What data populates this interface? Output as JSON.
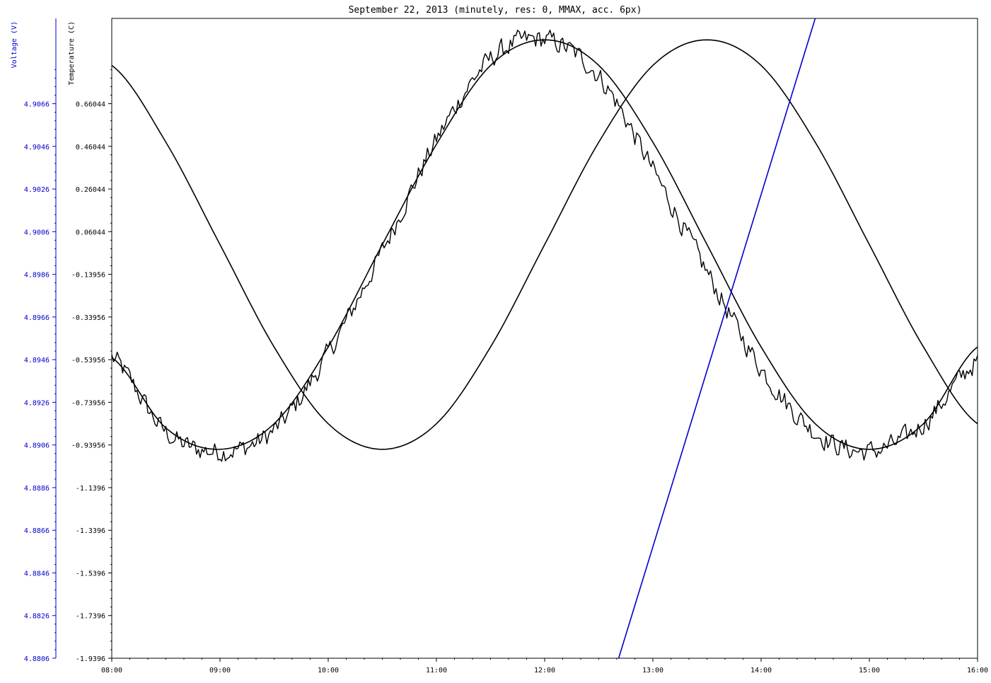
{
  "chart_data": {
    "type": "line",
    "title": "September 22, 2013 (minutely, res: 0, MMAX, acc. 6px)",
    "x_ticks": [
      "08:00",
      "09:00",
      "10:00",
      "11:00",
      "12:00",
      "13:00",
      "14:00",
      "15:00",
      "16:00"
    ],
    "xlim": [
      "08:00",
      "16:00"
    ],
    "axes": {
      "voltage": {
        "label": "Voltage (V)",
        "color": "#0000cc",
        "ylim": [
          4.8806,
          4.9106
        ],
        "ticks": [
          "4.8806",
          "4.8826",
          "4.8846",
          "4.8866",
          "4.8886",
          "4.8906",
          "4.8926",
          "4.8946",
          "4.8966",
          "4.8986",
          "4.9006",
          "4.9026",
          "4.9046",
          "4.9066"
        ]
      },
      "temperature": {
        "label": "Temperature (C)",
        "color": "#000000",
        "ylim": [
          -1.9396,
          1.0604
        ],
        "ticks": [
          "-1.9396",
          "-1.7396",
          "-1.5396",
          "-1.3396",
          "-1.1396",
          "-0.93956",
          "-0.73956",
          "-0.53956",
          "-0.33956",
          "-0.13956",
          "0.06044",
          "0.26044",
          "0.46044",
          "0.66044"
        ]
      }
    },
    "series": [
      {
        "axis": "temperature",
        "color": "#000000",
        "style": "noisy",
        "x": [
          "08:00",
          "08:30",
          "09:00",
          "09:30",
          "10:00",
          "10:30",
          "11:00",
          "11:30",
          "12:00",
          "12:30",
          "13:00",
          "13:30",
          "14:00",
          "14:30",
          "15:00",
          "15:30",
          "16:00"
        ],
        "values": [
          -0.53,
          -0.88,
          -0.97,
          -0.87,
          -0.51,
          -0.03,
          0.49,
          0.87,
          0.96,
          0.79,
          0.35,
          -0.13,
          -0.58,
          -0.88,
          -0.97,
          -0.84,
          -0.55
        ]
      },
      {
        "axis": "temperature",
        "color": "#000000",
        "style": "smooth",
        "x": [
          "08:00",
          "08:30",
          "09:00",
          "09:30",
          "10:00",
          "10:30",
          "11:00",
          "11:30",
          "12:00",
          "12:30",
          "13:00",
          "13:30",
          "14:00",
          "14:30",
          "15:00",
          "15:30",
          "16:00"
        ],
        "values": [
          -0.53,
          -0.86,
          -0.96,
          -0.84,
          -0.48,
          0.0,
          0.47,
          0.84,
          0.96,
          0.84,
          0.48,
          0.0,
          -0.48,
          -0.84,
          -0.96,
          -0.84,
          -0.48
        ]
      },
      {
        "axis": "temperature",
        "color": "#000000",
        "style": "smooth",
        "x": [
          "08:00",
          "08:30",
          "09:00",
          "09:30",
          "10:00",
          "10:30",
          "11:00",
          "11:30",
          "12:00",
          "12:30",
          "13:00",
          "13:30",
          "14:00",
          "14:30",
          "15:00",
          "15:30",
          "16:00"
        ],
        "values": [
          0.84,
          0.48,
          0.0,
          -0.48,
          -0.84,
          -0.96,
          -0.84,
          -0.48,
          0.0,
          0.48,
          0.84,
          0.96,
          0.84,
          0.48,
          0.0,
          -0.48,
          -0.84
        ]
      },
      {
        "axis": "voltage",
        "color": "#0000cc",
        "style": "line",
        "x": [
          "12:41",
          "14:30"
        ],
        "values": [
          4.8806,
          4.9106
        ]
      }
    ]
  }
}
